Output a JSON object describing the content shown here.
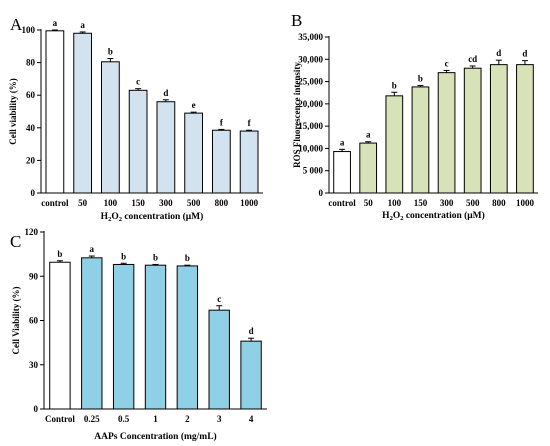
{
  "chart_data": [
    {
      "type": "bar",
      "panel_label": "A",
      "categories": [
        "control",
        "50",
        "100",
        "150",
        "300",
        "500",
        "800",
        "1000"
      ],
      "values": [
        99.5,
        98,
        80.5,
        63,
        56,
        49,
        38.5,
        38
      ],
      "errors": [
        0.5,
        0.8,
        2,
        1,
        1.2,
        0.6,
        0.5,
        0.5
      ],
      "significance": [
        "a",
        "a",
        "b",
        "c",
        "d",
        "e",
        "f",
        "f"
      ],
      "bar_colors": [
        "#ffffff",
        "#d3e2ef",
        "#d3e2ef",
        "#d3e2ef",
        "#d3e2ef",
        "#d3e2ef",
        "#d3e2ef",
        "#d3e2ef"
      ],
      "xlabel": {
        "pre": "H",
        "sub": "2",
        "mid": "O",
        "sub2": "2",
        "post": " concentration (μM)"
      },
      "ylabel": "Cell viability (%)",
      "ylim": [
        0,
        100
      ],
      "yticks": [
        0,
        20,
        40,
        60,
        80,
        100
      ],
      "ytick_labels": [
        "0",
        "20",
        "40",
        "60",
        "80",
        "100"
      ]
    },
    {
      "type": "bar",
      "panel_label": "B",
      "categories": [
        "control",
        "50",
        "100",
        "150",
        "300",
        "500",
        "800",
        "1000"
      ],
      "values": [
        9300,
        11200,
        21800,
        23800,
        27000,
        28000,
        28800,
        28800
      ],
      "errors": [
        500,
        300,
        800,
        300,
        500,
        500,
        1000,
        900
      ],
      "significance": [
        "a",
        "a",
        "b",
        "b",
        "c",
        "cd",
        "d",
        "d"
      ],
      "bar_colors": [
        "#ffffff",
        "#d8e2b8",
        "#d8e2b8",
        "#d8e2b8",
        "#d8e2b8",
        "#d8e2b8",
        "#d8e2b8",
        "#d8e2b8"
      ],
      "xlabel": {
        "pre": "H",
        "sub": "2",
        "mid": "O",
        "sub2": "2",
        "post": " concentration (μM)"
      },
      "ylabel": "ROS Fluorescence intensity",
      "ylim": [
        0,
        35000
      ],
      "yticks": [
        0,
        5000,
        10000,
        15000,
        20000,
        25000,
        30000,
        35000
      ],
      "ytick_labels": [
        "0",
        "5 000",
        "10,000",
        "15,000",
        "20,000",
        "25,000",
        "30,000",
        "35,000"
      ]
    },
    {
      "type": "bar",
      "panel_label": "C",
      "categories": [
        "Control",
        "0.25",
        "0.5",
        "1",
        "2",
        "3",
        "4"
      ],
      "values": [
        99.5,
        102.5,
        98,
        97.5,
        97,
        67,
        46
      ],
      "errors": [
        1,
        1.2,
        0.8,
        0.5,
        0.5,
        3,
        2
      ],
      "significance": [
        "b",
        "a",
        "b",
        "b",
        "b",
        "c",
        "d"
      ],
      "bar_colors": [
        "#ffffff",
        "#8fd0e6",
        "#8fd0e6",
        "#8fd0e6",
        "#8fd0e6",
        "#8fd0e6",
        "#8fd0e6"
      ],
      "xlabel": {
        "pre": "AAPs Concentration (mg/mL)",
        "sub": "",
        "mid": "",
        "sub2": "",
        "post": ""
      },
      "ylabel": "Cell Viability (%)",
      "ylim": [
        0,
        120
      ],
      "yticks": [
        0,
        30,
        60,
        90,
        120
      ],
      "ytick_labels": [
        "0",
        "30",
        "60",
        "90",
        "120"
      ]
    }
  ]
}
